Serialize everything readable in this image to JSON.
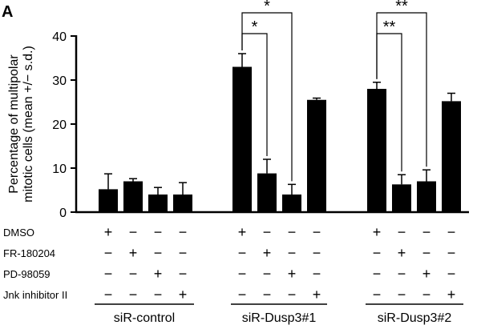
{
  "panel_label": "A",
  "chart_data": {
    "type": "bar",
    "ylabel": "Percentage of multipolar mitotic cells (mean +/− s.d.)",
    "ylabel_lines": [
      "Percentage of multipolar",
      "mitotic cells (mean +/− s.d.)"
    ],
    "ylim": [
      0,
      40
    ],
    "yticks": [
      0,
      10,
      20,
      30,
      40
    ],
    "grid": false,
    "legend": "none",
    "bar_color": "#000000",
    "groups": [
      {
        "name": "siR-control",
        "bars": [
          {
            "treatment": "DMSO",
            "value": 5.2,
            "sd": 3.5
          },
          {
            "treatment": "FR-180204",
            "value": 7.0,
            "sd": 0.6
          },
          {
            "treatment": "PD-98059",
            "value": 4.0,
            "sd": 1.6
          },
          {
            "treatment": "Jnk inhibitor II",
            "value": 4.0,
            "sd": 2.7
          }
        ]
      },
      {
        "name": "siR-Dusp3#1",
        "bars": [
          {
            "treatment": "DMSO",
            "value": 33.0,
            "sd": 3.0
          },
          {
            "treatment": "FR-180204",
            "value": 8.8,
            "sd": 3.2
          },
          {
            "treatment": "PD-98059",
            "value": 4.0,
            "sd": 2.3
          },
          {
            "treatment": "Jnk inhibitor II",
            "value": 25.5,
            "sd": 0.4
          }
        ]
      },
      {
        "name": "siR-Dusp3#2",
        "bars": [
          {
            "treatment": "DMSO",
            "value": 28.0,
            "sd": 1.5
          },
          {
            "treatment": "FR-180204",
            "value": 6.3,
            "sd": 2.2
          },
          {
            "treatment": "PD-98059",
            "value": 7.0,
            "sd": 2.6
          },
          {
            "treatment": "Jnk inhibitor II",
            "value": 25.2,
            "sd": 1.8
          }
        ]
      }
    ],
    "treatment_rows": [
      {
        "label": "DMSO",
        "signs": [
          "+",
          "−",
          "−",
          "−"
        ]
      },
      {
        "label": "FR-180204",
        "signs": [
          "−",
          "+",
          "−",
          "−"
        ]
      },
      {
        "label": "PD-98059",
        "signs": [
          "−",
          "−",
          "+",
          "−"
        ]
      },
      {
        "label": "Jnk inhibitor II",
        "signs": [
          "−",
          "−",
          "−",
          "+"
        ]
      }
    ],
    "annotations": [
      {
        "group": 1,
        "from_bar": 0,
        "to_bar": 1,
        "text": "*"
      },
      {
        "group": 1,
        "from_bar": 0,
        "to_bar": 2,
        "text": "*"
      },
      {
        "group": 2,
        "from_bar": 0,
        "to_bar": 1,
        "text": "**"
      },
      {
        "group": 2,
        "from_bar": 0,
        "to_bar": 2,
        "text": "**"
      }
    ]
  }
}
